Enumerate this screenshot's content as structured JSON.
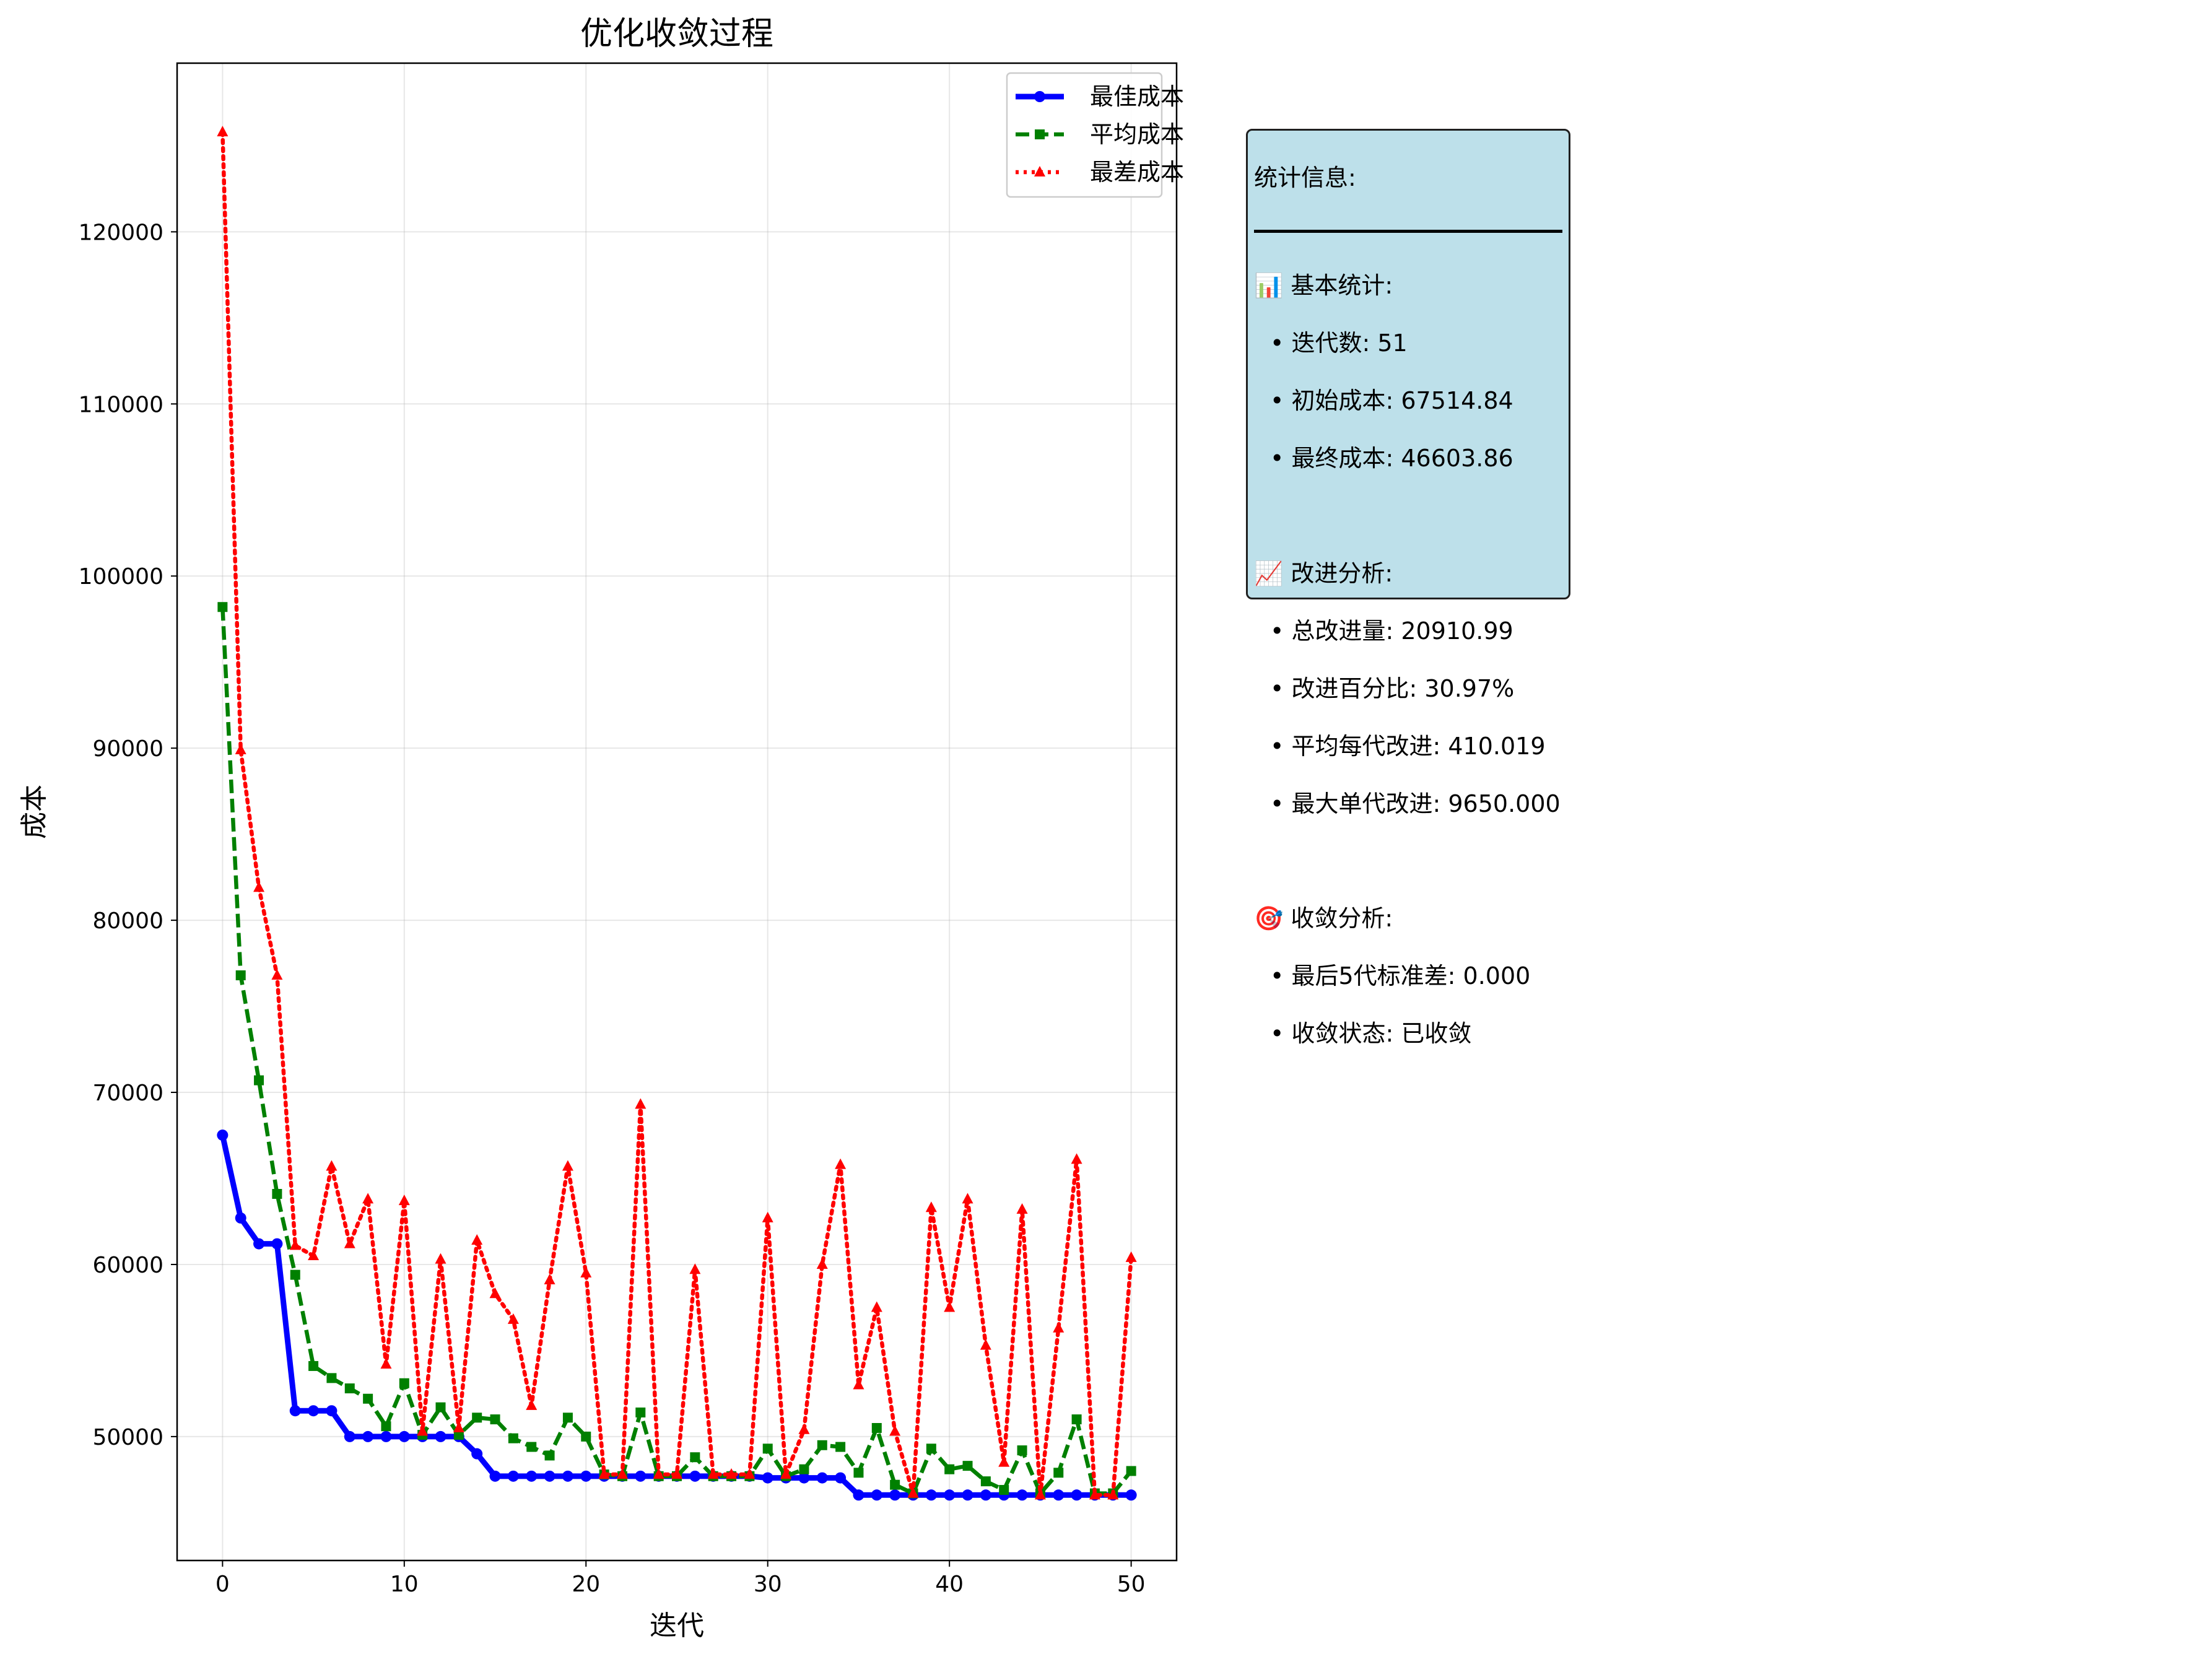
{
  "chart_data": {
    "type": "line",
    "title": "优化收敛过程",
    "xlabel": "迭代",
    "ylabel": "成本",
    "xlim": [
      -2.5,
      52.5
    ],
    "ylim": [
      42800,
      129800
    ],
    "xticks": [
      0,
      10,
      20,
      30,
      40,
      50
    ],
    "yticks": [
      50000,
      60000,
      70000,
      80000,
      90000,
      100000,
      110000,
      120000
    ],
    "grid": true,
    "legend_position": "top-right",
    "x": [
      0,
      1,
      2,
      3,
      4,
      5,
      6,
      7,
      8,
      9,
      10,
      11,
      12,
      13,
      14,
      15,
      16,
      17,
      18,
      19,
      20,
      21,
      22,
      23,
      24,
      25,
      26,
      27,
      28,
      29,
      30,
      31,
      32,
      33,
      34,
      35,
      36,
      37,
      38,
      39,
      40,
      41,
      42,
      43,
      44,
      45,
      46,
      47,
      48,
      49,
      50
    ],
    "series": [
      {
        "name": "最佳成本",
        "color": "#0000ff",
        "style": "solid",
        "marker": "circle",
        "values": [
          67514.84,
          62700,
          61200,
          61200,
          51500,
          51500,
          51500,
          50000,
          50000,
          50000,
          50000,
          50000,
          50000,
          50000,
          49000,
          47700,
          47700,
          47700,
          47700,
          47700,
          47700,
          47700,
          47700,
          47700,
          47700,
          47700,
          47700,
          47700,
          47700,
          47700,
          47600,
          47600,
          47600,
          47600,
          47600,
          46603.86,
          46603.86,
          46603.86,
          46603.86,
          46603.86,
          46603.86,
          46603.86,
          46603.86,
          46603.86,
          46603.86,
          46603.86,
          46603.86,
          46603.86,
          46603.86,
          46603.86,
          46603.86
        ]
      },
      {
        "name": "平均成本",
        "color": "#008000",
        "style": "dashed",
        "marker": "square",
        "values": [
          98200,
          76800,
          70700,
          64100,
          59400,
          54100,
          53400,
          52800,
          52200,
          50600,
          53100,
          50100,
          51700,
          50100,
          51100,
          51000,
          49900,
          49400,
          48900,
          51100,
          50000,
          47800,
          47700,
          51400,
          47700,
          47700,
          48800,
          47700,
          47700,
          47700,
          49300,
          47700,
          48100,
          49500,
          49400,
          47900,
          50500,
          47200,
          46700,
          49300,
          48100,
          48300,
          47400,
          46900,
          49200,
          46700,
          47900,
          51000,
          46700,
          46700,
          48000
        ]
      },
      {
        "name": "最差成本",
        "color": "#ff0000",
        "style": "dotted",
        "marker": "triangle",
        "values": [
          125800,
          89900,
          81900,
          76800,
          61100,
          60500,
          65700,
          61200,
          63800,
          54200,
          63700,
          50300,
          60300,
          50500,
          61400,
          58300,
          56800,
          51800,
          59100,
          65700,
          59500,
          47800,
          47800,
          69300,
          47800,
          47800,
          59700,
          47800,
          47800,
          47800,
          62700,
          47800,
          50400,
          60000,
          65800,
          53000,
          57500,
          50300,
          46700,
          63300,
          57500,
          63800,
          55300,
          48500,
          63200,
          46600,
          56300,
          66100,
          46600,
          46600,
          60400
        ]
      }
    ]
  },
  "stats_box": {
    "heading": "统计信息:",
    "section1_title": "📊 基本统计:",
    "section1_items": [
      "• 迭代数: 51",
      "• 初始成本: 67514.84",
      "• 最终成本: 46603.86"
    ],
    "section2_title": "📈 改进分析:",
    "section2_items": [
      "• 总改进量: 20910.99",
      "• 改进百分比: 30.97%",
      "• 平均每代改进: 410.019",
      "• 最大单代改进: 9650.000"
    ],
    "section3_title": "🎯 收敛分析:",
    "section3_items": [
      "• 最后5代标准差: 0.000",
      "• 收敛状态: 已收敛"
    ]
  }
}
